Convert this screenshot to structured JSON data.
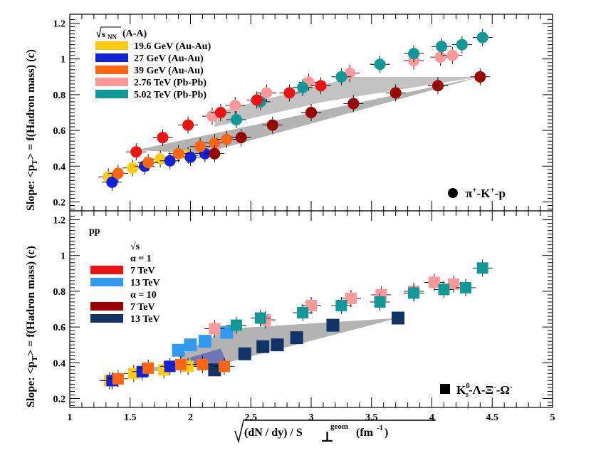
{
  "colors": {
    "au19": "#ffcc11",
    "au27": "#1122dd",
    "au39": "#ff6611",
    "pb276": "#ff9999",
    "pb502": "#119999",
    "red": "#ee1111",
    "darkred": "#990000",
    "ltblue": "#3399ee",
    "navy": "#113366",
    "band": "#9a9a9a"
  },
  "chart_data": [
    {
      "panel": "top",
      "type": "scatter",
      "marker": "circle",
      "ylabel": "Slope: <pT> = f(Hadron mass) (c)",
      "xlim": [
        1,
        5
      ],
      "ylim": [
        0.15,
        1.25
      ],
      "yticks": [
        "0.2",
        "0.4",
        "0.6",
        "0.8",
        "1",
        "1.2"
      ],
      "legend_title": "√sNN (A-A)",
      "annotation": "π⁺-K⁺-p",
      "series": [
        {
          "name": "19.6 GeV (Au-Au)",
          "color_key": "au19",
          "points": [
            [
              1.32,
              0.34
            ],
            [
              1.52,
              0.39
            ],
            [
              1.75,
              0.44
            ],
            [
              1.98,
              0.46
            ]
          ]
        },
        {
          "name": "27 GeV (Au-Au)",
          "color_key": "au27",
          "points": [
            [
              1.35,
              0.31
            ],
            [
              1.62,
              0.4
            ],
            [
              1.83,
              0.43
            ],
            [
              2.0,
              0.45
            ],
            [
              2.12,
              0.47
            ]
          ]
        },
        {
          "name": "39 GeV (Au-Au)",
          "color_key": "au39",
          "points": [
            [
              1.4,
              0.36
            ],
            [
              1.65,
              0.42
            ],
            [
              1.9,
              0.47
            ],
            [
              2.08,
              0.51
            ],
            [
              2.2,
              0.53
            ],
            [
              2.3,
              0.55
            ]
          ]
        },
        {
          "name": "2.76 TeV (Pb-Pb)",
          "color_key": "pb276",
          "points": [
            [
              2.18,
              0.68
            ],
            [
              2.37,
              0.74
            ],
            [
              2.63,
              0.81
            ],
            [
              2.98,
              0.87
            ],
            [
              3.32,
              0.92
            ],
            [
              3.85,
              0.99
            ],
            [
              4.07,
              1.01
            ],
            [
              4.17,
              1.02
            ]
          ]
        },
        {
          "name": "5.02 TeV (Pb-Pb)",
          "color_key": "pb502",
          "points": [
            [
              2.38,
              0.66
            ],
            [
              2.58,
              0.76
            ],
            [
              2.93,
              0.84
            ],
            [
              3.25,
              0.9
            ],
            [
              3.57,
              0.97
            ],
            [
              3.85,
              1.03
            ],
            [
              4.08,
              1.07
            ],
            [
              4.25,
              1.08
            ],
            [
              4.42,
              1.12
            ]
          ]
        },
        {
          "name": "pp α=1 7 TeV",
          "color_key": "red",
          "points": [
            [
              1.55,
              0.48
            ],
            [
              1.77,
              0.56
            ],
            [
              1.98,
              0.63
            ],
            [
              2.25,
              0.7
            ],
            [
              2.55,
              0.77
            ],
            [
              2.82,
              0.81
            ],
            [
              3.08,
              0.85
            ]
          ]
        },
        {
          "name": "pp α=10 7 TeV",
          "color_key": "darkred",
          "points": [
            [
              2.2,
              0.47
            ],
            [
              2.42,
              0.56
            ],
            [
              2.68,
              0.63
            ],
            [
              3.0,
              0.7
            ],
            [
              3.35,
              0.75
            ],
            [
              3.7,
              0.81
            ],
            [
              4.05,
              0.85
            ],
            [
              4.4,
              0.9
            ]
          ]
        }
      ]
    },
    {
      "panel": "bottom",
      "type": "scatter",
      "marker": "square",
      "ylabel": "Slope: <pT> = f(Hadron mass) (c)",
      "xlabel": "√(dN / dy) / S⊥geom (fm⁻¹)",
      "xlim": [
        1,
        5
      ],
      "xticks": [
        "1",
        "1.5",
        "2",
        "2.5",
        "3",
        "3.5",
        "4",
        "4.5",
        "5"
      ],
      "ylim": [
        0.15,
        1.25
      ],
      "yticks": [
        "0.2",
        "0.4",
        "0.6",
        "0.8",
        "1",
        "1.2"
      ],
      "annotation": "K⁰s-Λ-Ξ⁻-Ω⁻",
      "series": [
        {
          "name": "19.6 GeV (Au-Au)",
          "color_key": "au19",
          "points": [
            [
              1.33,
              0.3
            ],
            [
              1.53,
              0.34
            ],
            [
              1.78,
              0.36
            ],
            [
              1.98,
              0.38
            ]
          ]
        },
        {
          "name": "27 GeV (Au-Au)",
          "color_key": "au27",
          "points": [
            [
              1.35,
              0.3
            ],
            [
              1.6,
              0.35
            ],
            [
              1.83,
              0.38
            ]
          ]
        },
        {
          "name": "39 GeV (Au-Au)",
          "color_key": "au39",
          "points": [
            [
              1.4,
              0.31
            ],
            [
              1.65,
              0.37
            ],
            [
              1.92,
              0.39
            ],
            [
              2.1,
              0.39
            ],
            [
              2.28,
              0.38
            ]
          ]
        },
        {
          "name": "2.76 TeV (Pb-Pb)",
          "color_key": "pb276",
          "points": [
            [
              2.2,
              0.59
            ],
            [
              2.62,
              0.64
            ],
            [
              3.0,
              0.72
            ],
            [
              3.33,
              0.76
            ],
            [
              3.58,
              0.78
            ],
            [
              3.85,
              0.8
            ],
            [
              4.02,
              0.85
            ],
            [
              4.18,
              0.84
            ]
          ]
        },
        {
          "name": "5.02 TeV (Pb-Pb)",
          "color_key": "pb502",
          "points": [
            [
              2.38,
              0.61
            ],
            [
              2.58,
              0.65
            ],
            [
              2.93,
              0.68
            ],
            [
              3.25,
              0.72
            ],
            [
              3.57,
              0.74
            ],
            [
              3.85,
              0.79
            ],
            [
              4.1,
              0.81
            ],
            [
              4.28,
              0.82
            ],
            [
              4.42,
              0.93
            ]
          ]
        }
      ],
      "bars_rise": [
        {
          "color_key": "ltblue",
          "points": [
            [
              1.9,
              0.47
            ],
            [
              2.0,
              0.5
            ],
            [
              2.12,
              0.52
            ],
            [
              2.3,
              0.57
            ]
          ]
        }
      ],
      "bars_flat": [
        {
          "color_key": "navy",
          "points": [
            [
              2.2,
              0.36
            ],
            [
              2.45,
              0.45
            ],
            [
              2.6,
              0.49
            ],
            [
              2.72,
              0.5
            ],
            [
              2.88,
              0.54
            ],
            [
              3.18,
              0.61
            ],
            [
              3.72,
              0.65
            ]
          ]
        }
      ],
      "legend_title": "pp",
      "legend": {
        "sqrt_s": "√s",
        "alpha1": "α = 1",
        "alpha10": "α = 10",
        "e7": "7 TeV",
        "e13": "13 TeV"
      }
    }
  ]
}
